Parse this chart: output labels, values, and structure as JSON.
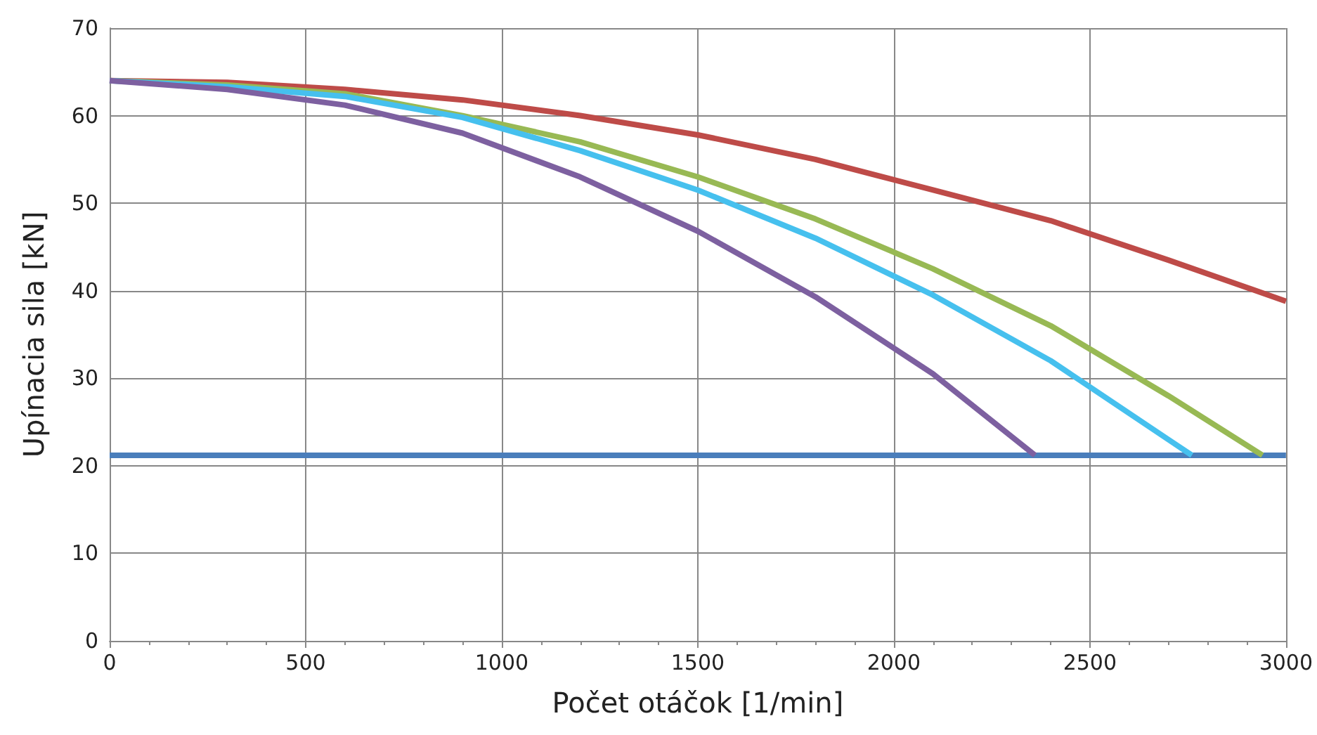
{
  "chart_data": {
    "type": "line",
    "xlabel": "Počet otáčok [1/min]",
    "ylabel": "Upínacia sila [kN]",
    "xlim": [
      0,
      3000
    ],
    "xticks": [
      0,
      500,
      1000,
      1500,
      2000,
      2500,
      3000
    ],
    "ylim": [
      0,
      70
    ],
    "yticks": [
      0,
      10,
      20,
      30,
      40,
      50,
      60,
      70
    ],
    "grid": true,
    "marker": "none",
    "line_style": "solid",
    "series": [
      {
        "color": "#4a7ebb",
        "x": [
          0,
          3000
        ],
        "values": [
          21.2,
          21.2
        ]
      },
      {
        "color": "#be4b48",
        "x": [
          0,
          300,
          600,
          900,
          1200,
          1500,
          1800,
          2100,
          2400,
          2700,
          3000
        ],
        "values": [
          64,
          63.8,
          63,
          61.8,
          60,
          57.8,
          55,
          51.5,
          48,
          43.5,
          38.8
        ]
      },
      {
        "color": "#98b954",
        "x": [
          0,
          300,
          600,
          900,
          1200,
          1500,
          1800,
          2100,
          2400,
          2700,
          2940
        ],
        "values": [
          64,
          63.5,
          62.5,
          60,
          57,
          53,
          48.2,
          42.5,
          36,
          28,
          21.2
        ]
      },
      {
        "color": "#46c0ee",
        "x": [
          0,
          300,
          600,
          900,
          1200,
          1500,
          1800,
          2100,
          2400,
          2700,
          2760
        ],
        "values": [
          64,
          63.3,
          62.2,
          59.8,
          56,
          51.5,
          46,
          39.5,
          32,
          23,
          21.2
        ]
      },
      {
        "color": "#7d60a0",
        "x": [
          0,
          300,
          600,
          900,
          1200,
          1500,
          1800,
          2100,
          2360
        ],
        "values": [
          64,
          63,
          61.2,
          58,
          53,
          46.8,
          39.3,
          30.5,
          21.2
        ]
      }
    ]
  }
}
